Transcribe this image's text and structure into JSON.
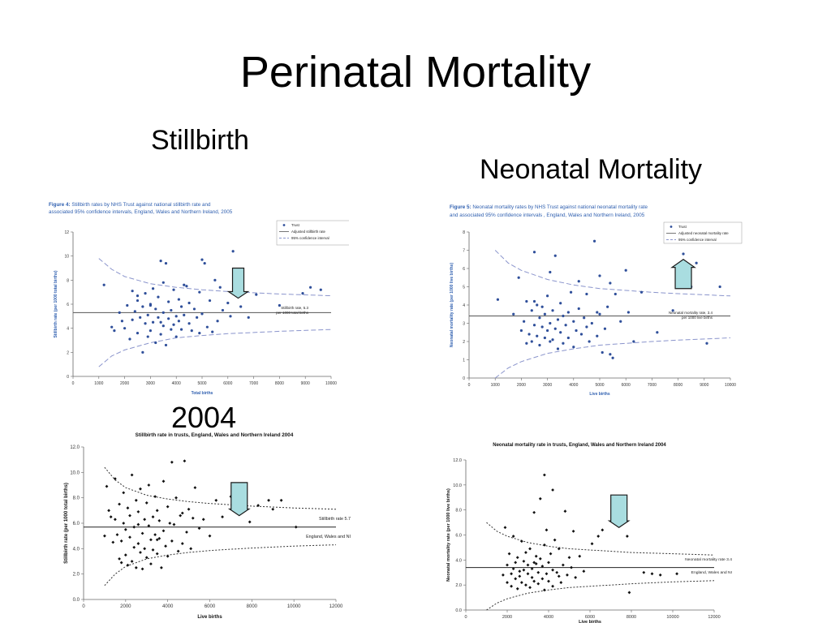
{
  "slide": {
    "title": "Perinatal Mortality",
    "label_stillbirth": "Stillbirth",
    "label_neonatal": "Neonatal Mortality",
    "label_2004": "2004"
  },
  "chart_data": [
    {
      "id": "stillbirth-2005",
      "type": "scatter",
      "caption_prefix": "Figure 4:",
      "caption": "Stillbirth rates by NHS Trust against national stillbirth rate and associated 95% confidence intervals, England, Wales and Northern Ireland, 2005",
      "xlabel": "Total births",
      "ylabel": "Stillbirth rate (per 1000 total births)",
      "xlim": [
        0,
        10000
      ],
      "ylim": [
        0,
        12
      ],
      "xticks": [
        0,
        1000,
        2000,
        3000,
        4000,
        5000,
        6000,
        7000,
        8000,
        9000,
        10000
      ],
      "yticks": [
        0,
        2,
        4,
        6,
        8,
        10,
        12
      ],
      "reference": 5.3,
      "reference_label": [
        "Stillbirth rate, 5.3",
        "per 1000 total births"
      ],
      "limits": {
        "upper": [
          [
            1000,
            9.8
          ],
          [
            1500,
            8.9
          ],
          [
            2000,
            8.3
          ],
          [
            3000,
            7.7
          ],
          [
            4000,
            7.4
          ],
          [
            5000,
            7.2
          ],
          [
            6000,
            7.05
          ],
          [
            7000,
            6.95
          ],
          [
            8000,
            6.85
          ],
          [
            10000,
            6.7
          ]
        ],
        "lower": [
          [
            1000,
            0.8
          ],
          [
            1500,
            1.7
          ],
          [
            2000,
            2.2
          ],
          [
            3000,
            2.8
          ],
          [
            4000,
            3.2
          ],
          [
            5000,
            3.4
          ],
          [
            6000,
            3.55
          ],
          [
            7000,
            3.65
          ],
          [
            8000,
            3.75
          ],
          [
            10000,
            3.9
          ]
        ]
      },
      "arrow": {
        "direction": "down",
        "x": 6400,
        "y_from": 9.0,
        "y_to": 6.5
      },
      "legend": [
        "Trust",
        "Adjusted stillbirth rate",
        "95% confidence interval"
      ],
      "legend_position": "top-right",
      "colors": {
        "point": "#2f4f9a",
        "ci": "#8a94cc",
        "ref": "#555555"
      },
      "x": [
        1200,
        1500,
        1600,
        1800,
        1900,
        2000,
        2100,
        2200,
        2300,
        2300,
        2400,
        2500,
        2500,
        2600,
        2700,
        2700,
        2800,
        2800,
        2900,
        2900,
        3000,
        3000,
        3100,
        3100,
        3200,
        3200,
        3300,
        3300,
        3400,
        3400,
        3500,
        3500,
        3500,
        3600,
        3600,
        3700,
        3700,
        3800,
        3800,
        3900,
        3900,
        4000,
        4000,
        4100,
        4100,
        4200,
        4200,
        4300,
        4400,
        4500,
        4500,
        4600,
        4700,
        4800,
        4900,
        4900,
        5000,
        5000,
        5100,
        5200,
        5300,
        5400,
        5500,
        5600,
        5700,
        5800,
        6000,
        6100,
        6200,
        6500,
        6800,
        7100,
        8000,
        8900,
        9200,
        9600,
        3400,
        2500,
        4300,
        3000
      ],
      "y": [
        7.6,
        4.1,
        3.8,
        5.3,
        4.6,
        4.0,
        5.9,
        3.1,
        4.7,
        7.1,
        5.4,
        3.6,
        6.7,
        4.9,
        2.0,
        5.8,
        4.4,
        6.9,
        3.3,
        5.1,
        6.0,
        3.8,
        4.5,
        7.3,
        5.6,
        2.8,
        4.9,
        6.6,
        3.5,
        9.6,
        4.2,
        5.3,
        7.8,
        2.6,
        9.4,
        4.8,
        6.2,
        3.9,
        5.5,
        4.3,
        7.2,
        5.0,
        3.3,
        6.4,
        4.6,
        5.8,
        3.9,
        5.1,
        7.5,
        4.4,
        6.1,
        3.8,
        5.6,
        4.9,
        7.0,
        3.6,
        9.7,
        5.2,
        9.4,
        4.1,
        6.3,
        3.7,
        8.0,
        4.6,
        7.4,
        5.5,
        6.1,
        5.0,
        10.4,
        5.8,
        4.9,
        6.8,
        5.9,
        6.9,
        7.4,
        7.2,
        4.5,
        6.3,
        7.6,
        5.9
      ]
    },
    {
      "id": "neonatal-2005",
      "type": "scatter",
      "caption_prefix": "Figure 5:",
      "caption": "Neonatal mortality rates by NHS Trust against national neonatal mortality rate and associated 95% confidence intervals , England, Wales and Northern Ireland, 2005",
      "xlabel": "Live births",
      "ylabel": "Neonatal mortality rate (per 1000 live births)",
      "xlim": [
        0,
        10000
      ],
      "ylim": [
        0,
        8
      ],
      "xticks": [
        0,
        1000,
        2000,
        3000,
        4000,
        5000,
        6000,
        7000,
        8000,
        9000,
        10000
      ],
      "yticks": [
        0,
        1,
        2,
        3,
        4,
        5,
        6,
        7,
        8
      ],
      "reference": 3.4,
      "reference_label": [
        "Neonatal mortality rate, 3.4",
        "per 1000 live births"
      ],
      "limits": {
        "upper": [
          [
            1000,
            7.0
          ],
          [
            1500,
            6.3
          ],
          [
            2000,
            5.9
          ],
          [
            3000,
            5.4
          ],
          [
            4000,
            5.1
          ],
          [
            5000,
            4.9
          ],
          [
            6000,
            4.8
          ],
          [
            7000,
            4.7
          ],
          [
            8000,
            4.62
          ],
          [
            10000,
            4.5
          ]
        ],
        "lower": [
          [
            1000,
            0.0
          ],
          [
            1500,
            0.55
          ],
          [
            2000,
            0.9
          ],
          [
            3000,
            1.35
          ],
          [
            4000,
            1.6
          ],
          [
            5000,
            1.8
          ],
          [
            6000,
            1.9
          ],
          [
            7000,
            2.0
          ],
          [
            8000,
            2.08
          ],
          [
            10000,
            2.2
          ]
        ]
      },
      "arrow": {
        "direction": "up",
        "x": 8200,
        "y_from": 4.9,
        "y_to": 6.5
      },
      "legend": [
        "Trust",
        "Adjusted neonatal mortality rate",
        "95% confidence interval"
      ],
      "legend_position": "top-right",
      "colors": {
        "point": "#2f4f9a",
        "ci": "#8a94cc",
        "ref": "#555555"
      },
      "x": [
        1100,
        1700,
        1900,
        2000,
        2100,
        2200,
        2200,
        2300,
        2400,
        2400,
        2500,
        2500,
        2600,
        2600,
        2700,
        2700,
        2800,
        2800,
        2900,
        2900,
        3000,
        3000,
        3100,
        3100,
        3200,
        3200,
        3300,
        3300,
        3400,
        3400,
        3500,
        3500,
        3600,
        3600,
        3700,
        3800,
        3800,
        3900,
        4000,
        4000,
        4100,
        4200,
        4200,
        4300,
        4400,
        4500,
        4500,
        4600,
        4700,
        4800,
        4900,
        5000,
        5000,
        5100,
        5200,
        5300,
        5400,
        5500,
        5600,
        5800,
        6000,
        6100,
        6300,
        6600,
        7200,
        7800,
        8200,
        8500,
        8700,
        9100,
        9600,
        2500,
        3100,
        4900,
        5400
      ],
      "y": [
        4.3,
        3.5,
        5.5,
        2.6,
        3.1,
        1.9,
        4.2,
        2.4,
        3.7,
        2.0,
        2.9,
        6.9,
        2.3,
        4.0,
        3.3,
        1.8,
        2.8,
        3.9,
        2.2,
        3.5,
        2.6,
        4.5,
        3.0,
        5.8,
        2.1,
        3.7,
        2.7,
        6.7,
        3.2,
        1.6,
        2.5,
        4.1,
        3.4,
        1.9,
        2.9,
        3.6,
        2.2,
        4.7,
        3.1,
        1.7,
        2.6,
        3.8,
        5.3,
        2.4,
        3.3,
        2.8,
        4.6,
        2.0,
        3.0,
        7.5,
        2.3,
        5.6,
        3.5,
        1.4,
        2.7,
        3.9,
        5.2,
        1.1,
        4.6,
        3.1,
        5.9,
        3.6,
        2.0,
        4.7,
        2.5,
        3.7,
        6.8,
        5.0,
        6.3,
        1.9,
        5.0,
        4.2,
        2.0,
        3.6,
        1.3
      ]
    },
    {
      "id": "stillbirth-2004",
      "type": "scatter",
      "title": "Stillbirth rate in trusts, England, Wales and Northern Ireland 2004",
      "xlabel": "Live births",
      "ylabel": "Stillbirth rate (per 1000 total births)",
      "xlim": [
        0,
        12000
      ],
      "ylim": [
        0,
        12
      ],
      "xticks": [
        0,
        2000,
        4000,
        6000,
        8000,
        10000,
        12000
      ],
      "yticks": [
        0,
        2,
        4,
        6,
        8,
        10,
        12
      ],
      "tick_labels_y": [
        "0.0",
        "2.0",
        "4.0",
        "6.0",
        "8.0",
        "10.0",
        "12.0"
      ],
      "reference": 5.7,
      "reference_label": [
        "Stillbirth rate 5.7"
      ],
      "lower_label": "England, Wales and NI",
      "limits": {
        "upper": [
          [
            1000,
            10.4
          ],
          [
            1500,
            9.4
          ],
          [
            2000,
            8.8
          ],
          [
            3000,
            8.2
          ],
          [
            4000,
            7.9
          ],
          [
            5000,
            7.7
          ],
          [
            6000,
            7.55
          ],
          [
            7000,
            7.45
          ],
          [
            8000,
            7.35
          ],
          [
            10000,
            7.2
          ],
          [
            12000,
            7.1
          ]
        ],
        "lower": [
          [
            1000,
            1.1
          ],
          [
            1500,
            2.0
          ],
          [
            2000,
            2.6
          ],
          [
            3000,
            3.2
          ],
          [
            4000,
            3.5
          ],
          [
            5000,
            3.7
          ],
          [
            6000,
            3.85
          ],
          [
            7000,
            3.95
          ],
          [
            8000,
            4.05
          ],
          [
            10000,
            4.2
          ],
          [
            12000,
            4.3
          ]
        ]
      },
      "arrow": {
        "direction": "down",
        "x": 7400,
        "y_from": 9.2,
        "y_to": 6.6
      },
      "colors": {
        "point": "#111111",
        "ci": "#333333",
        "ref": "#222222"
      },
      "x": [
        1000,
        1100,
        1200,
        1300,
        1400,
        1500,
        1500,
        1600,
        1700,
        1700,
        1800,
        1800,
        1900,
        1900,
        2000,
        2000,
        2100,
        2100,
        2200,
        2200,
        2300,
        2300,
        2400,
        2400,
        2500,
        2500,
        2600,
        2600,
        2700,
        2700,
        2800,
        2800,
        2900,
        2900,
        3000,
        3000,
        3100,
        3100,
        3200,
        3200,
        3300,
        3300,
        3400,
        3400,
        3500,
        3500,
        3600,
        3600,
        3700,
        3800,
        3800,
        3900,
        4000,
        4000,
        4100,
        4200,
        4200,
        4300,
        4400,
        4500,
        4600,
        4700,
        4800,
        4900,
        5000,
        5100,
        5200,
        5300,
        5500,
        5700,
        6000,
        6300,
        6600,
        7000,
        7200,
        7900,
        8300,
        8800,
        9000,
        9400,
        10100,
        2600,
        3500,
        4700
      ],
      "y": [
        5.0,
        8.9,
        7.0,
        6.5,
        4.5,
        9.5,
        6.3,
        5.1,
        3.2,
        7.5,
        4.6,
        2.9,
        6.0,
        8.4,
        3.5,
        5.5,
        7.2,
        2.7,
        4.9,
        6.6,
        3.0,
        9.8,
        5.7,
        4.1,
        7.8,
        2.5,
        6.9,
        4.4,
        3.7,
        8.7,
        5.2,
        2.4,
        6.3,
        4.0,
        7.6,
        3.3,
        5.8,
        9.0,
        4.7,
        2.8,
        6.5,
        3.9,
        8.1,
        5.1,
        3.6,
        7.0,
        4.8,
        6.2,
        2.5,
        9.3,
        5.4,
        4.2,
        7.3,
        3.4,
        6.0,
        10.8,
        4.6,
        5.9,
        8.0,
        3.8,
        6.6,
        4.4,
        10.9,
        5.3,
        7.1,
        4.0,
        6.4,
        8.8,
        5.6,
        6.3,
        5.0,
        7.8,
        6.5,
        8.1,
        7.9,
        6.1,
        7.4,
        7.8,
        7.1,
        7.8,
        5.7,
        5.9,
        4.7,
        6.8
      ]
    },
    {
      "id": "neonatal-2004",
      "type": "scatter",
      "title": "Neonatal mortality rate in trusts, England, Wales and Northern Ireland 2004",
      "xlabel": "Live births",
      "ylabel": "Neonatal mortality rate (per 1000 live births)",
      "xlim": [
        0,
        12000
      ],
      "ylim": [
        0,
        12
      ],
      "xticks": [
        0,
        2000,
        4000,
        6000,
        8000,
        10000,
        12000
      ],
      "yticks": [
        0,
        2,
        4,
        6,
        8,
        10,
        12
      ],
      "tick_labels_y": [
        "0.0",
        "2.0",
        "4.0",
        "6.0",
        "8.0",
        "10.0",
        "12.0"
      ],
      "reference": 3.4,
      "reference_label": [
        "Neonatal mortality rate 3.4"
      ],
      "lower_label": "England, Wales and NI",
      "limits": {
        "upper": [
          [
            1000,
            7.0
          ],
          [
            1500,
            6.3
          ],
          [
            2000,
            5.9
          ],
          [
            3000,
            5.4
          ],
          [
            4000,
            5.1
          ],
          [
            5000,
            4.9
          ],
          [
            6000,
            4.8
          ],
          [
            7000,
            4.7
          ],
          [
            8000,
            4.6
          ],
          [
            10000,
            4.5
          ],
          [
            12000,
            4.4
          ]
        ],
        "lower": [
          [
            1000,
            0.0
          ],
          [
            1500,
            0.55
          ],
          [
            2000,
            0.9
          ],
          [
            3000,
            1.35
          ],
          [
            4000,
            1.6
          ],
          [
            5000,
            1.8
          ],
          [
            6000,
            1.9
          ],
          [
            7000,
            2.0
          ],
          [
            8000,
            2.1
          ],
          [
            10000,
            2.25
          ],
          [
            12000,
            2.35
          ]
        ]
      },
      "arrow": {
        "direction": "down",
        "x": 7400,
        "y_from": 9.2,
        "y_to": 6.6
      },
      "colors": {
        "point": "#111111",
        "ci": "#333333",
        "ref": "#222222"
      },
      "x": [
        1800,
        1900,
        2000,
        2000,
        2100,
        2200,
        2200,
        2300,
        2300,
        2400,
        2400,
        2500,
        2500,
        2600,
        2600,
        2700,
        2700,
        2800,
        2800,
        2900,
        2900,
        3000,
        3000,
        3100,
        3100,
        3200,
        3200,
        3300,
        3300,
        3400,
        3400,
        3500,
        3500,
        3600,
        3600,
        3700,
        3700,
        3800,
        3800,
        3900,
        3900,
        4000,
        4000,
        4100,
        4200,
        4200,
        4300,
        4400,
        4500,
        4500,
        4600,
        4700,
        4800,
        4900,
        5000,
        5100,
        5200,
        5300,
        5500,
        5700,
        6100,
        6400,
        6600,
        7800,
        7900,
        8600,
        9000,
        9400,
        10200,
        3800,
        4200,
        3300
      ],
      "y": [
        2.8,
        6.6,
        2.2,
        3.6,
        4.5,
        2.9,
        1.9,
        3.3,
        5.9,
        2.5,
        3.8,
        1.7,
        4.2,
        2.7,
        3.1,
        5.5,
        2.2,
        3.9,
        3.2,
        2.0,
        4.6,
        2.9,
        3.6,
        1.8,
        4.9,
        2.6,
        3.3,
        7.8,
        2.3,
        3.7,
        4.3,
        2.1,
        3.0,
        8.9,
        4.1,
        2.5,
        3.5,
        5.2,
        1.6,
        2.9,
        6.4,
        3.8,
        2.3,
        4.5,
        3.2,
        1.9,
        5.6,
        3.0,
        2.7,
        4.9,
        2.2,
        3.6,
        7.9,
        2.8,
        4.2,
        3.4,
        6.3,
        2.6,
        4.3,
        3.1,
        5.3,
        5.9,
        6.4,
        5.9,
        1.4,
        3.0,
        2.9,
        2.8,
        2.9,
        10.8,
        9.6,
        3.8
      ]
    }
  ]
}
